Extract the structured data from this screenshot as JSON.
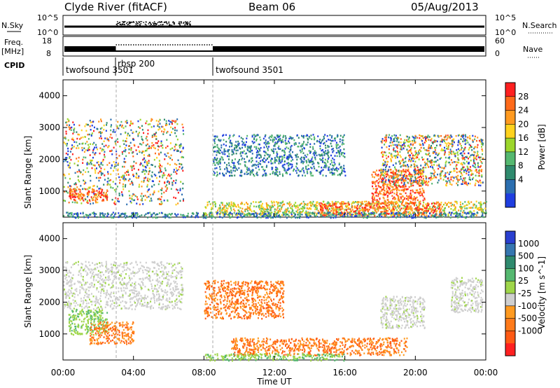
{
  "header": {
    "station": "Clyde River (fitACF)",
    "beam": "Beam 06",
    "date": "05/Aug/2013"
  },
  "aux_panels": {
    "nsky_label": "N.Sky",
    "nsky_top": "10^5",
    "nsky_bottom": "10^0",
    "nsearch_label": "N.Search",
    "nsearch_top": "10^5",
    "nsearch_bottom": "10^0",
    "freq_label_1": "Freq.",
    "freq_label_2": "[MHz]",
    "freq_top": "18",
    "freq_bottom": "8",
    "nave_label": "Nave",
    "nave_top": "60",
    "nave_bottom": "0",
    "cpid_label": "CPID",
    "cpid_segments": [
      {
        "name": "twofsound 3501",
        "start_hour": 0.0,
        "end_hour": 3.0
      },
      {
        "name": "rbsp 200",
        "start_hour": 3.0,
        "end_hour": 8.5
      },
      {
        "name": "twofsound 3501",
        "start_hour": 8.5,
        "end_hour": 24.0
      }
    ]
  },
  "power_colorbar": {
    "label": "Power [dB]",
    "ticks": [
      "28",
      "24",
      "20",
      "16",
      "12",
      "8",
      "4"
    ],
    "colors": [
      "#ff2020",
      "#ff6a1a",
      "#ff9a20",
      "#ffd21e",
      "#9cd62b",
      "#55b870",
      "#2f8a6e",
      "#2c6fb0",
      "#1f3ee0"
    ]
  },
  "velocity_colorbar": {
    "label": "Velocity [m s^-1]",
    "ticks": [
      "1000",
      "500",
      "100",
      "25",
      "-25",
      "-100",
      "-500",
      "-1000"
    ],
    "colors": [
      "#2a3fd0",
      "#3676b0",
      "#2f8a6e",
      "#55b870",
      "#9fd64a",
      "#cfcfcf",
      "#ff9a20",
      "#ff7a1a",
      "#ff5a14",
      "#ff2020"
    ]
  },
  "chart_data": [
    {
      "type": "heatmap",
      "name": "power",
      "ylabel": "Slant Range [km]",
      "ylim": [
        180,
        4500
      ],
      "y_ticks": [
        1000,
        2000,
        3000,
        4000
      ],
      "x_ticks": [
        "00:00",
        "04:00",
        "08:00",
        "12:00",
        "16:00",
        "20:00",
        "00:00"
      ],
      "xlim_hours": [
        0,
        24
      ],
      "scatter_regions": [
        {
          "x": [
            0.0,
            6.8
          ],
          "y": [
            600,
            3300
          ],
          "value": "mixed 4-28 dB",
          "level": "mixed"
        },
        {
          "x": [
            0.3,
            2.5
          ],
          "y": [
            700,
            1100
          ],
          "value": "24-28 dB",
          "level": "high"
        },
        {
          "x": [
            8.0,
            24.0
          ],
          "y": [
            250,
            700
          ],
          "value": "12-20 dB",
          "level": "mid"
        },
        {
          "x": [
            14.5,
            21.5
          ],
          "y": [
            250,
            650
          ],
          "value": "24-28 dB",
          "level": "high"
        },
        {
          "x": [
            17.5,
            20.5
          ],
          "y": [
            600,
            1700
          ],
          "value": "20-28 dB",
          "level": "high"
        },
        {
          "x": [
            8.5,
            16.0
          ],
          "y": [
            1500,
            2800
          ],
          "value": "4-16 dB",
          "level": "low"
        },
        {
          "x": [
            18.0,
            23.8
          ],
          "y": [
            1200,
            2800
          ],
          "value": "8-24 dB",
          "level": "mixed"
        },
        {
          "x": [
            0.0,
            24.0
          ],
          "y": [
            180,
            350
          ],
          "value": "4-12 dB",
          "level": "low"
        }
      ]
    },
    {
      "type": "heatmap",
      "name": "velocity",
      "ylabel": "Slant Range [km]",
      "xlabel": "Time UT",
      "ylim": [
        180,
        4500
      ],
      "y_ticks": [
        1000,
        2000,
        3000,
        4000
      ],
      "x_ticks": [
        "00:00",
        "04:00",
        "08:00",
        "12:00",
        "16:00",
        "20:00",
        "00:00"
      ],
      "xlim_hours": [
        0,
        24
      ],
      "scatter_regions": [
        {
          "x": [
            0.0,
            6.8
          ],
          "y": [
            1800,
            3300
          ],
          "value": "-25 to 25",
          "level": "grey"
        },
        {
          "x": [
            0.3,
            2.5
          ],
          "y": [
            1000,
            1800
          ],
          "value": "25 to 100",
          "level": "green"
        },
        {
          "x": [
            1.5,
            4.0
          ],
          "y": [
            700,
            1400
          ],
          "value": "-100 to -500",
          "level": "orange"
        },
        {
          "x": [
            8.0,
            12.5
          ],
          "y": [
            1500,
            2700
          ],
          "value": "-100 to -500",
          "level": "orange"
        },
        {
          "x": [
            9.5,
            19.5
          ],
          "y": [
            350,
            900
          ],
          "value": "-100 to -500",
          "level": "orange"
        },
        {
          "x": [
            18.0,
            20.5
          ],
          "y": [
            1200,
            2200
          ],
          "value": "-25 to 25",
          "level": "grey"
        },
        {
          "x": [
            22.0,
            23.8
          ],
          "y": [
            1700,
            2800
          ],
          "value": "-25 to 25",
          "level": "grey"
        },
        {
          "x": [
            8.0,
            16.0
          ],
          "y": [
            180,
            400
          ],
          "value": "25 to 100",
          "level": "green"
        }
      ]
    }
  ]
}
